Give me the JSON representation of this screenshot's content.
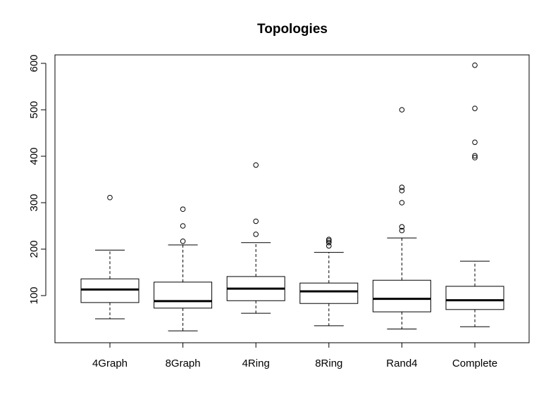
{
  "chart_data": {
    "type": "box",
    "title": "Topologies",
    "xlabel": "",
    "ylabel": "",
    "ylim": [
      0,
      620
    ],
    "y_ticks": [
      100,
      200,
      300,
      400,
      500,
      600
    ],
    "categories": [
      "4Graph",
      "8Graph",
      "4Ring",
      "8Ring",
      "Rand4",
      "Complete"
    ],
    "boxes": [
      {
        "name": "4Graph",
        "whisker_low": 50,
        "q1": 85,
        "median": 113,
        "q3": 136,
        "whisker_high": 198,
        "outliers": [
          311
        ]
      },
      {
        "name": "8Graph",
        "whisker_low": 24,
        "q1": 73,
        "median": 88,
        "q3": 129,
        "whisker_high": 209,
        "outliers": [
          217,
          250,
          286
        ]
      },
      {
        "name": "4Ring",
        "whisker_low": 62,
        "q1": 89,
        "median": 115,
        "q3": 141,
        "whisker_high": 214,
        "outliers": [
          232,
          260,
          381
        ]
      },
      {
        "name": "8Ring",
        "whisker_low": 35,
        "q1": 83,
        "median": 109,
        "q3": 127,
        "whisker_high": 193,
        "outliers": [
          207,
          214,
          218,
          221
        ]
      },
      {
        "name": "Rand4",
        "whisker_low": 28,
        "q1": 65,
        "median": 93,
        "q3": 133,
        "whisker_high": 224,
        "outliers": [
          240,
          248,
          300,
          326,
          333,
          500
        ]
      },
      {
        "name": "Complete",
        "whisker_low": 33,
        "q1": 70,
        "median": 90,
        "q3": 120,
        "whisker_high": 174,
        "outliers": [
          397,
          401,
          430,
          503,
          596
        ]
      }
    ]
  }
}
